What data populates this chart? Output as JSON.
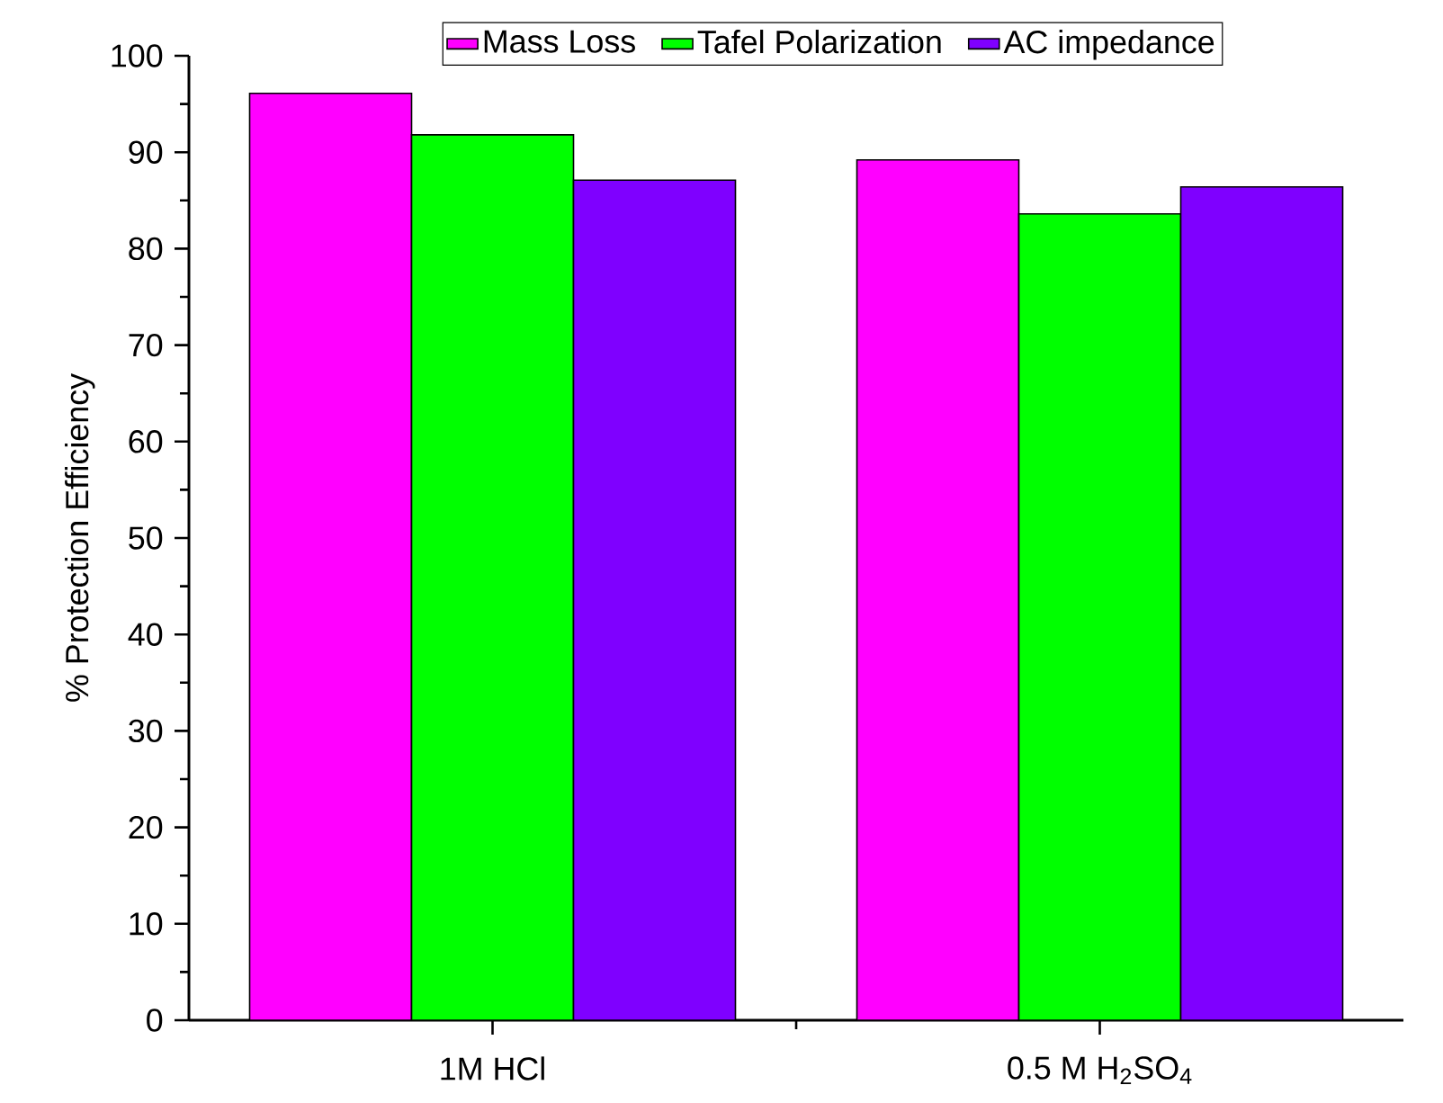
{
  "chart_data": {
    "type": "bar",
    "ylabel": "% Protection Efficiency",
    "categories": [
      "1M HCl",
      "0.5 M H$_{2}$SO$_{4}$"
    ],
    "series": [
      {
        "name": "Mass Loss",
        "color": "#ff00ff",
        "values": [
          96.1,
          89.2
        ]
      },
      {
        "name": "Tafel Polarization",
        "color": "#00ff00",
        "values": [
          91.8,
          83.6
        ]
      },
      {
        "name": "AC impedance",
        "color": "#7f00ff",
        "values": [
          87.1,
          86.4
        ]
      }
    ],
    "ylim": [
      0,
      100
    ],
    "yticks": [
      0,
      10,
      20,
      30,
      40,
      50,
      60,
      70,
      80,
      90,
      100
    ],
    "grid": false,
    "legend": "top"
  }
}
